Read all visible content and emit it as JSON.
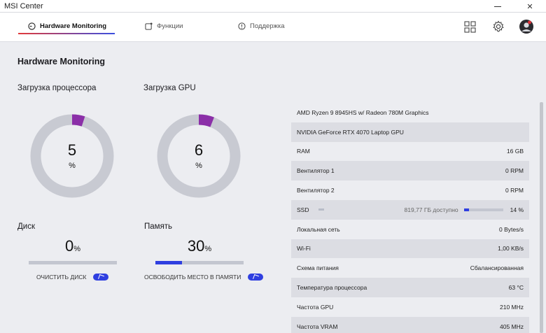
{
  "window": {
    "title": "MSI Center",
    "minimize": "—",
    "close": "✕"
  },
  "tabs": [
    {
      "label": "Hardware Monitoring",
      "icon": "gauge-icon",
      "active": true
    },
    {
      "label": "Функции",
      "icon": "features-icon",
      "active": false
    },
    {
      "label": "Поддержка",
      "icon": "support-icon",
      "active": false
    }
  ],
  "toolbar": {
    "grid_icon": "grid-icon",
    "settings_icon": "gear-icon",
    "avatar": "avatar"
  },
  "page": {
    "title": "Hardware Monitoring",
    "cpu": {
      "label": "Загрузка процессора",
      "value": "5",
      "unit": "%",
      "percent": 5
    },
    "gpu": {
      "label": "Загрузка GPU",
      "value": "6",
      "unit": "%",
      "percent": 6
    },
    "disk": {
      "label": "Диск",
      "value": "0",
      "unit": "%",
      "percent": 0,
      "action": "ОЧИСТИТЬ ДИСК"
    },
    "memory": {
      "label": "Память",
      "value": "30",
      "unit": "%",
      "percent": 30,
      "action": "ОСВОБОДИТЬ МЕСТО В ПАМЯТИ"
    }
  },
  "info": {
    "cpu_name": "AMD Ryzen 9 8945HS w/ Radeon 780M Graphics",
    "gpu_name": "NVIDIA GeForce RTX 4070 Laptop GPU",
    "rows": [
      {
        "label": "RAM",
        "value": "16 GB"
      },
      {
        "label": "Вентилятор 1",
        "value": "0 RPM"
      },
      {
        "label": "Вентилятор 2",
        "value": "0 RPM"
      }
    ],
    "ssd": {
      "label": "SSD",
      "free": "819,77 ГБ доступно",
      "value": "14 %",
      "percent": 14
    },
    "rows2": [
      {
        "label": "Локальная сеть",
        "value": "0 Bytes/s"
      },
      {
        "label": "Wi-Fi",
        "value": "1,00 KB/s"
      },
      {
        "label": "Схема питания",
        "value": "Сбалансированная"
      },
      {
        "label": "Температура процессора",
        "value": "63 °C"
      },
      {
        "label": "Частота GPU",
        "value": "210 MHz"
      },
      {
        "label": "Частота VRAM",
        "value": "405 MHz"
      }
    ]
  },
  "colors": {
    "accent": "#2f3fe0",
    "gauge_fill": "#8b2fa8",
    "gauge_track": "#c8cad2"
  }
}
